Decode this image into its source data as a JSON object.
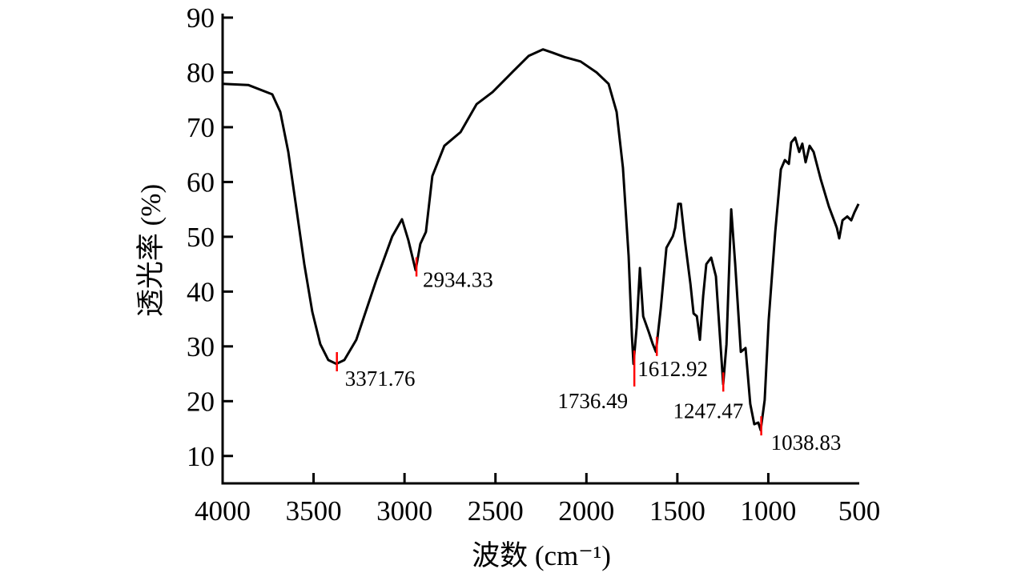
{
  "chart_data": {
    "type": "line",
    "title": "",
    "xlabel": "波数 (cm⁻¹)",
    "ylabel": "透光率 (%)",
    "xlim": [
      4000,
      500
    ],
    "ylim": [
      5,
      90
    ],
    "x_reversed": true,
    "grid": false,
    "xticks": [
      4000,
      3500,
      3000,
      2500,
      2000,
      1500,
      1000,
      500
    ],
    "xtick_labels": [
      "4000",
      "3500",
      "3000",
      "2500",
      "2000",
      "1500",
      "1000",
      "500"
    ],
    "yticks": [
      10,
      20,
      30,
      40,
      50,
      60,
      70,
      80,
      90
    ],
    "ytick_labels": [
      "10",
      "20",
      "30",
      "40",
      "50",
      "60",
      "70",
      "80",
      "90"
    ],
    "line_color": "#000000",
    "marker_color": "#ff0000",
    "series": [
      {
        "name": "spectrum",
        "x": [
          4000,
          3859,
          3727,
          3683,
          3639,
          3595,
          3551,
          3507,
          3463,
          3419,
          3375,
          3331,
          3265,
          3155,
          3067,
          3014,
          2979,
          2939,
          2913,
          2882,
          2847,
          2781,
          2692,
          2604,
          2516,
          2406,
          2318,
          2239,
          2186,
          2120,
          2032,
          1944,
          1878,
          1834,
          1799,
          1768,
          1750,
          1741,
          1724,
          1706,
          1688,
          1657,
          1635,
          1618,
          1591,
          1560,
          1525,
          1512,
          1495,
          1481,
          1459,
          1428,
          1411,
          1393,
          1376,
          1358,
          1341,
          1314,
          1288,
          1266,
          1248,
          1230,
          1204,
          1182,
          1151,
          1125,
          1099,
          1077,
          1055,
          1042,
          1020,
          998,
          962,
          931,
          909,
          887,
          874,
          852,
          830,
          813,
          795,
          773,
          751,
          711,
          667,
          623,
          610,
          592,
          566,
          544,
          526,
          504
        ],
        "y": [
          77.9,
          77.7,
          76,
          72.8,
          65.5,
          55.3,
          45,
          36.3,
          30.4,
          27.5,
          26.8,
          27.5,
          31.2,
          42.1,
          50.1,
          53.2,
          49.4,
          43.9,
          48.7,
          50.9,
          61.1,
          66.6,
          69.1,
          74.2,
          76.4,
          80.1,
          83,
          84.2,
          83.6,
          82.8,
          82,
          80,
          77.9,
          72.8,
          62.6,
          46.5,
          31.9,
          26.8,
          33.4,
          44.3,
          35.5,
          32.6,
          30.4,
          29,
          37,
          48,
          50.1,
          51.6,
          56,
          56,
          49.4,
          41.4,
          36,
          35.5,
          31.2,
          39.2,
          45,
          46.2,
          42.8,
          31.9,
          23.1,
          30.4,
          55,
          45,
          29,
          29.7,
          19.5,
          15.8,
          16.1,
          14.7,
          20.2,
          34.8,
          50.9,
          62.3,
          64,
          63.3,
          67.2,
          68.1,
          65.5,
          67,
          63.6,
          66.6,
          65.5,
          60.4,
          55.5,
          51.6,
          49.7,
          53,
          53.7,
          53,
          54.5,
          56
        ]
      }
    ],
    "annotations": [
      {
        "x": 3371.76,
        "y": 27.2,
        "label": "3371.76"
      },
      {
        "x": 2934.33,
        "y": 44.5,
        "label": "2934.33"
      },
      {
        "x": 1736.49,
        "y": 27.5,
        "label": "1736.49"
      },
      {
        "x": 1612.92,
        "y": 30,
        "label": "1612.92"
      },
      {
        "x": 1247.47,
        "y": 23.5,
        "label": "1247.47"
      },
      {
        "x": 1038.83,
        "y": 15.5,
        "label": "1038.83"
      }
    ]
  }
}
